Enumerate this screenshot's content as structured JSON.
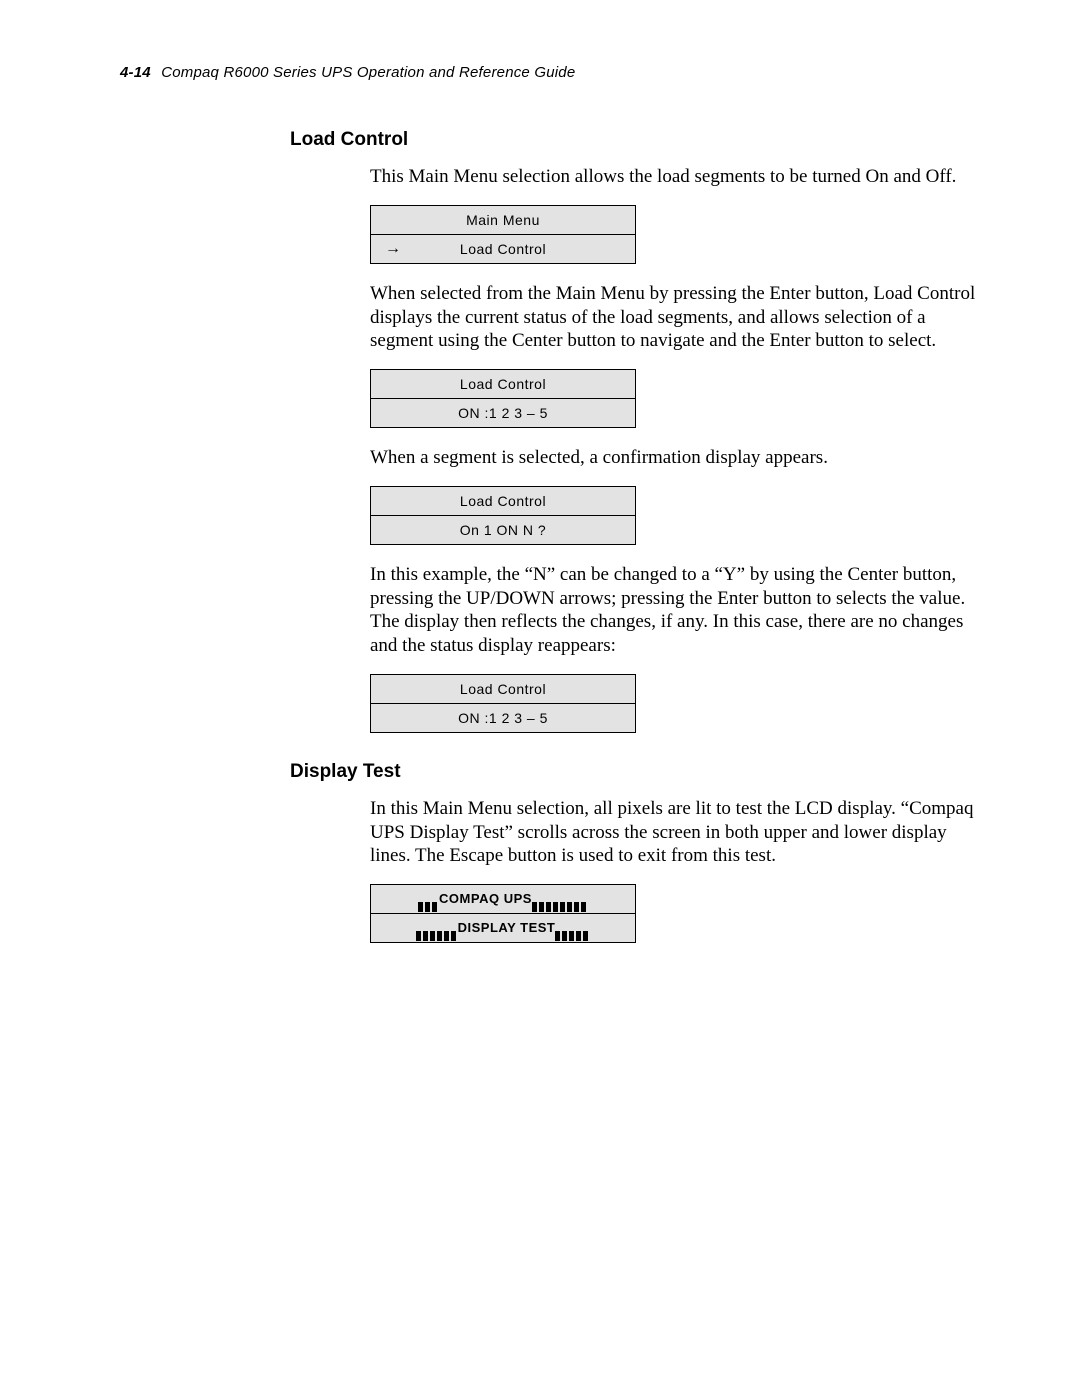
{
  "header": {
    "page_number": "4-14",
    "title": "Compaq R6000 Series UPS Operation and Reference Guide"
  },
  "sections": {
    "load_control": {
      "heading": "Load Control",
      "p1": "This Main Menu selection allows the load segments to be turned On and Off.",
      "lcd1": {
        "row1": "Main Menu",
        "row2": "Load Control",
        "arrow": "→"
      },
      "p2": "When selected from the Main Menu by pressing the Enter button, Load Control displays the current status of the load segments, and allows selection of a segment using the Center button to navigate and the Enter button to select.",
      "lcd2": {
        "row1": "Load Control",
        "row2": "ON :1 2 3 – 5"
      },
      "p3": "When a segment is selected, a confirmation display appears.",
      "lcd3": {
        "row1": "Load Control",
        "row2": "On   1 ON N   ?"
      },
      "p4": "In this example, the “N” can be changed to a “Y” by using the Center button, pressing the UP/DOWN arrows; pressing the Enter button to selects the value. The display then reflects the changes, if any.  In this case, there are no changes and the status display reappears:",
      "lcd4": {
        "row1": "Load Control",
        "row2": "ON :1 2 3 – 5"
      }
    },
    "display_test": {
      "heading": "Display Test",
      "p1": "In this Main Menu selection, all pixels are lit to test the LCD display. “Compaq UPS Display Test” scrolls across the screen in both upper and lower display lines. The Escape button is used to exit from this test.",
      "lcd": {
        "row1_text": "COMPAQ UPS",
        "row1_left_blocks": 3,
        "row1_right_blocks": 8,
        "row2_text": "DISPLAY TEST",
        "row2_left_blocks": 6,
        "row2_right_blocks": 5
      }
    }
  },
  "style": {
    "lcd_bg": "#e3e3e3",
    "page_bg": "#ffffff",
    "text_color": "#000000"
  }
}
